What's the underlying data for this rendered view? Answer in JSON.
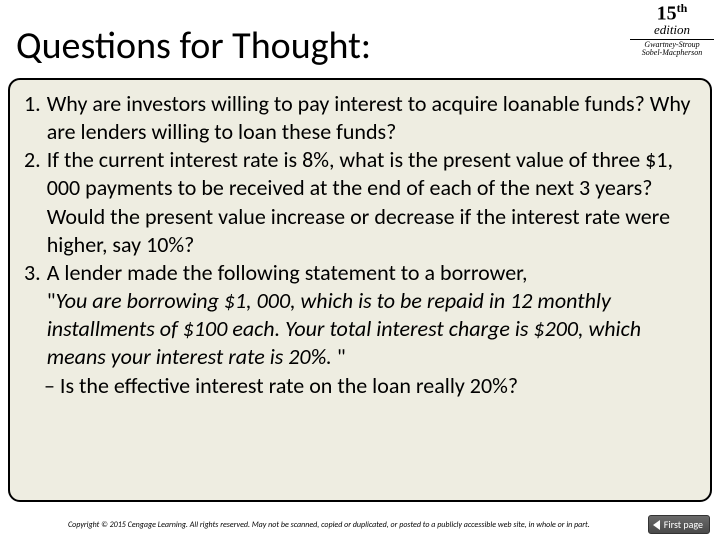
{
  "header": {
    "title": "Questions for Thought:",
    "edition": {
      "number": "15",
      "suffix": "th",
      "label": "edition",
      "authors_line1": "Gwartney-Stroup",
      "authors_line2": "Sobel-Macpherson"
    }
  },
  "content": {
    "q1": {
      "num": "1.",
      "text": "Why are investors willing to pay interest to acquire loanable funds? Why are lenders willing to loan these funds?"
    },
    "q2": {
      "num": "2.",
      "text": "If the current interest rate is 8%, what is the present value of three $1, 000 payments to be received at the end of each of the next 3 years? Would the present value increase or decrease if the interest rate were higher, say 10%?"
    },
    "q3": {
      "num": "3.",
      "lead": "A lender made the following statement to a borrower,",
      "quote_open": "\"",
      "quote_body": "You are borrowing $1, 000, which is to be repaid in 12 monthly installments of $100 each. Your total interest charge is $200, which means your interest rate is 20%.",
      "quote_close": " \"",
      "followup": "– Is the effective interest rate on the loan really 20%?"
    }
  },
  "footer": {
    "copyright": "Copyright © 2015 Cengage Learning. All rights reserved. May not be scanned, copied or duplicated, or posted to a publicly accessible web site, in whole or in part.",
    "first_page": "First page"
  },
  "colors": {
    "content_bg": "#eeede1",
    "border": "#000000",
    "button_bg": "#5c5c5c",
    "button_text": "#ffffff"
  }
}
